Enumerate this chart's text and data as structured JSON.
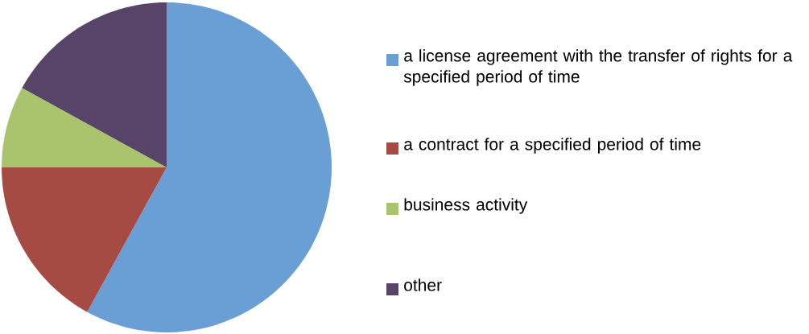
{
  "chart_data": {
    "type": "pie",
    "categories": [
      "a license agreement with the transfer of rights for a specified period of time",
      "a contract for a specified period of time",
      "business activity",
      "other"
    ],
    "values": [
      58,
      17,
      8,
      17
    ],
    "colors": [
      "#6a9fd6",
      "#a64a44",
      "#a9c46c",
      "#574468"
    ],
    "legend": "right"
  }
}
